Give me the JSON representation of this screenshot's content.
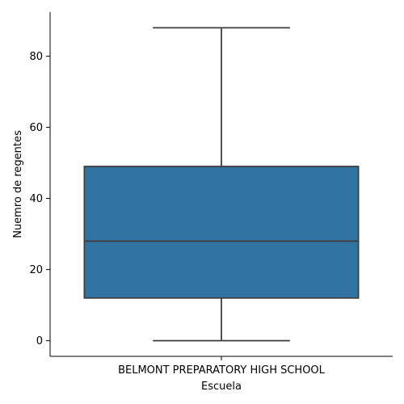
{
  "chart_data": {
    "type": "box",
    "xlabel": "Escuela",
    "ylabel": "Nuemro de regentes",
    "categories": [
      "BELMONT PREPARATORY HIGH SCHOOL"
    ],
    "boxes": [
      {
        "category": "BELMONT PREPARATORY HIGH SCHOOL",
        "min": 0,
        "q1": 12,
        "median": 28,
        "q3": 49,
        "max": 88
      }
    ],
    "y_ticks": [
      0,
      20,
      40,
      60,
      80
    ],
    "y_tick_labels": [
      "0",
      "20",
      "40",
      "60",
      "80"
    ],
    "ylim": [
      -4.4,
      92.4
    ],
    "grid": false,
    "colors": {
      "box_fill": "#3274a1",
      "line": "#3f3f3f",
      "axis": "#000000"
    }
  }
}
